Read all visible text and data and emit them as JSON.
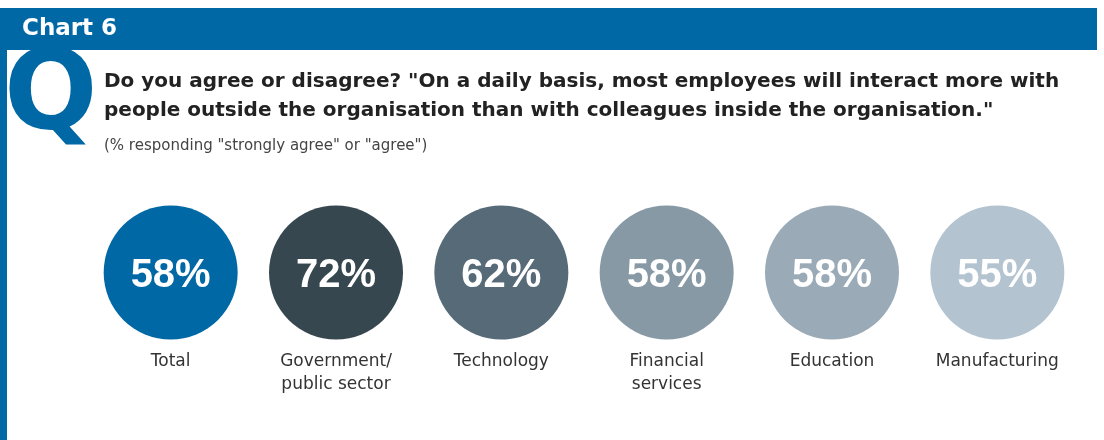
{
  "chart_data": {
    "type": "other",
    "title": "Chart 6",
    "subtitle": "Do you agree or disagree? \"On a daily basis, most employees will interact more with people outside the organisation than with colleagues inside the organisation.\"",
    "annotations": [
      "Q",
      "(% responding \"strongly agree\" or \"agree\")"
    ],
    "categories": [
      "Total",
      "Government/ public sector",
      "Technology",
      "Financial services",
      "Education",
      "Manufacturing"
    ],
    "values": [
      58,
      72,
      62,
      58,
      58,
      55
    ],
    "value_labels": [
      "58%",
      "72%",
      "62%",
      "58%",
      "58%",
      "55%"
    ],
    "colors": [
      "#0068a5",
      "#37474f",
      "#566a78",
      "#8799a5",
      "#9aabb7",
      "#b3c4d0"
    ]
  }
}
